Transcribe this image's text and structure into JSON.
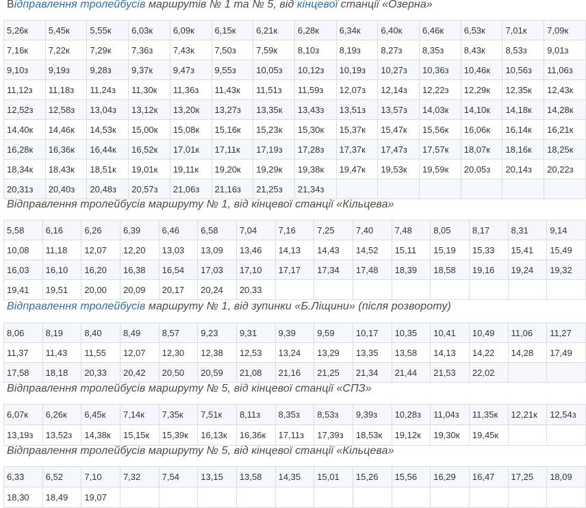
{
  "sections": [
    {
      "title_parts": [
        {
          "text": "В",
          "style": "up"
        },
        {
          "text": "ідправлення тролейбусів",
          "style": "hl"
        },
        {
          "text": " маршрутів № 1 та № 5, від ",
          "style": ""
        },
        {
          "text": "кінцевої",
          "style": "hl"
        },
        {
          "text": " станції «Озерна»",
          "style": ""
        }
      ],
      "rows": [
        [
          "5,26к",
          "5,45к",
          "5,55к",
          "6,03к",
          "6,09к",
          "6,15к",
          "6,21к",
          "6,28к",
          "6,34к",
          "6,40к",
          "6,46к",
          "6,53к",
          "7,01к",
          "7,09к"
        ],
        [
          "7,16к",
          "7,22к",
          "7,29к",
          "7,36з",
          "7,43к",
          "7,50з",
          "7,59к",
          "8,10з",
          "8,19з",
          "8,27з",
          "8,35з",
          "8,43к",
          "8,53з",
          "9,01з"
        ],
        [
          "9,10з",
          "9,19з",
          "9,28з",
          "9,37к",
          "9,47з",
          "9,55з",
          "10,05з",
          "10,12з",
          "10,19з",
          "10,27з",
          "10,36з",
          "10,46к",
          "10,56з",
          "11,06з"
        ],
        [
          "11,12з",
          "11,18з",
          "11,24з",
          "11,30к",
          "11,36з",
          "11,43к",
          "11,51з",
          "11,59з",
          "12,07з",
          "12,14з",
          "12,22з",
          "12,29к",
          "12,35к",
          "12,43к"
        ],
        [
          "12,52з",
          "12,58з",
          "13,04з",
          "13,12к",
          "13,20к",
          "13,27з",
          "13,35к",
          "13,43з",
          "13,51з",
          "13,57з",
          "14,03к",
          "14,10к",
          "14,18к",
          "14,28к"
        ],
        [
          "14,40к",
          "14,46к",
          "14,53к",
          "15,00к",
          "15,08к",
          "15,16к",
          "15,23к",
          "15,30к",
          "15,37к",
          "15,47к",
          "15,56к",
          "16,06к",
          "16,14к",
          "16,21к"
        ],
        [
          "16,28к",
          "16,36к",
          "16,44к",
          "16,52к",
          "17,01к",
          "17,11к",
          "17,19з",
          "17,28з",
          "17,37к",
          "17,47з",
          "17,57к",
          "18,07к",
          "18,16к",
          "18,25к"
        ],
        [
          "18,34к",
          "18,43к",
          "18,51к",
          "19,01к",
          "19,11к",
          "19,20к",
          "19,29к",
          "19,38к",
          "19,47к",
          "19,53к",
          "19,59к",
          "20,05з",
          "20,14з",
          "20,22з"
        ],
        [
          "20,31з",
          "20,40з",
          "20,48з",
          "20,57з",
          "21,06з",
          "21,16з",
          "21,25з",
          "21,34з",
          "",
          "",
          "",
          "",
          "",
          ""
        ]
      ]
    },
    {
      "title_parts": [
        {
          "text": "Відправлення тролейбусів маршруту № 1, від кінцевої станції «Кільцева»",
          "style": ""
        }
      ],
      "rows": [
        [
          "5,58",
          "6,16",
          "6,26",
          "6,39",
          "6,46",
          "6,58",
          "7,04",
          "7,16",
          "7,25",
          "7,40",
          "7,48",
          "8,05",
          "8,17",
          "8,31",
          "9,14"
        ],
        [
          "10,08",
          "11,18",
          "12,07",
          "12,20",
          "13,03",
          "13,09",
          "13,46",
          "14,13",
          "14,43",
          "14,52",
          "15,11",
          "15,19",
          "15,33",
          "15,41",
          "15,49"
        ],
        [
          "16,03",
          "16,10",
          "16,20",
          "16,38",
          "16,54",
          "17,03",
          "17,10",
          "17,17",
          "17,34",
          "17,48",
          "18,39",
          "18,58",
          "19,16",
          "19,24",
          "19,32"
        ],
        [
          "19,41",
          "19,51",
          "20,00",
          "20,09",
          "20,17",
          "20,24",
          "20,33",
          "",
          "",
          "",
          "",
          "",
          "",
          "",
          ""
        ]
      ]
    },
    {
      "title_parts": [
        {
          "text": "Відправлення тролейбусів",
          "style": "hl"
        },
        {
          "text": " маршруту № 1, від зупинки «Б.Ліщини» (після розвороту)",
          "style": ""
        }
      ],
      "rows": [
        [
          "8,06",
          "8,19",
          "8,40",
          "8,49",
          "8,57",
          "9,23",
          "9,31",
          "9,39",
          "9,59",
          "10,17",
          "10,35",
          "10,41",
          "10,49",
          "11,06",
          "11,27"
        ],
        [
          "11,37",
          "11,43",
          "11,55",
          "12,07",
          "12,30",
          "12,38",
          "12,53",
          "13,24",
          "13,29",
          "13,35",
          "13,58",
          "14,13",
          "14,22",
          "14,28",
          "17,49"
        ],
        [
          "17,58",
          "18,18",
          "20,33",
          "20,42",
          "20,50",
          "20,59",
          "21,08",
          "21,16",
          "21,25",
          "21,34",
          "21,44",
          "21,53",
          "22,02",
          "",
          ""
        ]
      ]
    },
    {
      "title_parts": [
        {
          "text": "Відправлення тролейбусів маршруту № 5, від кінцевої станції «СПЗ»",
          "style": ""
        }
      ],
      "rows": [
        [
          "6,07к",
          "6,26к",
          "6,45к",
          "7,14к",
          "7,35к",
          "7,51к",
          "8,11з",
          "8,35з",
          "8,53з",
          "9,39з",
          "10,28з",
          "11,04з",
          "11,35к",
          "12,21к",
          "12,54з"
        ],
        [
          "13,19з",
          "13,52з",
          "14,38к",
          "15,15к",
          "15,39к",
          "16,13к",
          "16,36к",
          "17,11з",
          "17,39з",
          "18,53к",
          "19,12к",
          "19,30к",
          "19,45к",
          "",
          ""
        ]
      ]
    },
    {
      "title_parts": [
        {
          "text": "Відправлення тролейбусів маршруту № 5, від кінцевої станції «Кільцева»",
          "style": ""
        }
      ],
      "rows": [
        [
          "6,33",
          "6,52",
          "7,10",
          "7,32",
          "7,54",
          "13,15",
          "13,58",
          "14,35",
          "15,01",
          "15,26",
          "15,56",
          "16,29",
          "16,47",
          "17,25",
          "18,09"
        ],
        [
          "18,30",
          "18,49",
          "19,07",
          "",
          "",
          "",
          "",
          "",
          "",
          "",
          "",
          "",
          "",
          "",
          ""
        ]
      ]
    }
  ]
}
